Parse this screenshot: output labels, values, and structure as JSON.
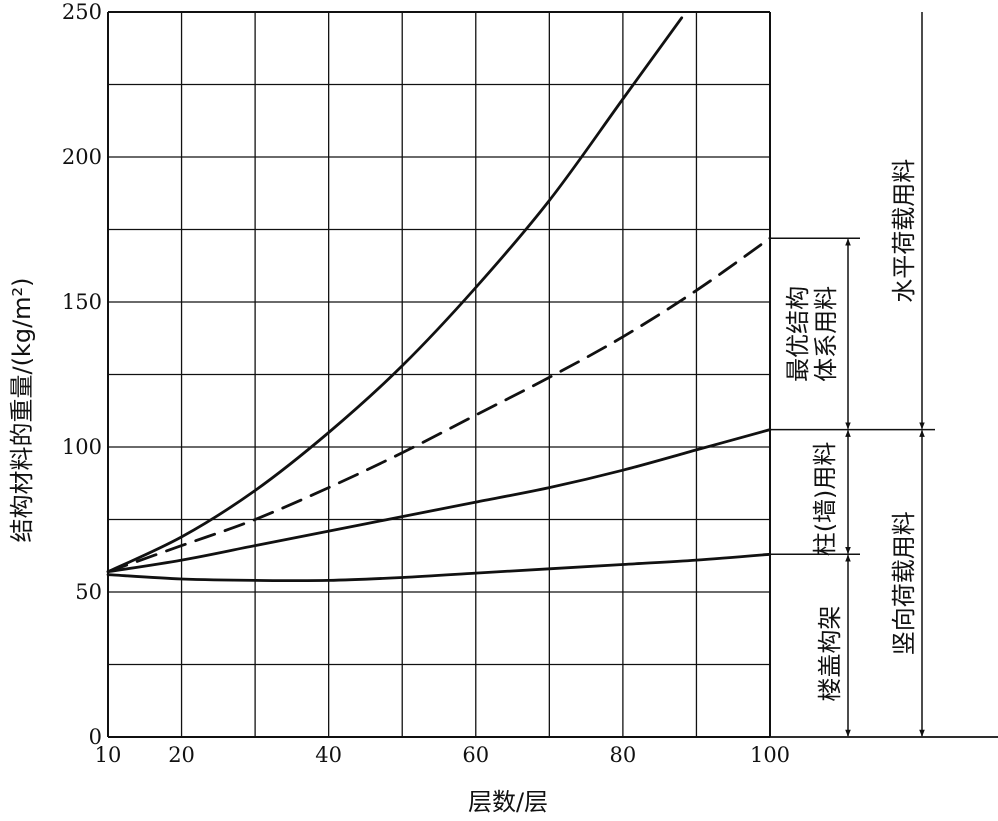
{
  "chart_data": {
    "type": "line",
    "xlabel": "层数/层",
    "ylabel": "结构材料的重量/(kg/m²)",
    "x_ticks": [
      10,
      20,
      40,
      60,
      80,
      100
    ],
    "y_ticks": [
      0,
      50,
      100,
      150,
      200,
      250
    ],
    "xlim": [
      10,
      100
    ],
    "ylim": [
      0,
      250
    ],
    "grid": true,
    "series": [
      {
        "style": "solid",
        "x": [
          10,
          20,
          30,
          40,
          50,
          60,
          70,
          80,
          88
        ],
        "y": [
          57,
          69,
          85,
          105,
          128,
          155,
          185,
          220,
          248
        ]
      },
      {
        "style": "dashed",
        "x": [
          10,
          20,
          30,
          40,
          50,
          60,
          70,
          80,
          90,
          100
        ],
        "y": [
          57,
          66,
          75,
          86,
          98,
          111,
          124,
          138,
          154,
          172
        ]
      },
      {
        "style": "solid",
        "x": [
          10,
          20,
          30,
          40,
          50,
          60,
          70,
          80,
          90,
          100
        ],
        "y": [
          57,
          61,
          66,
          71,
          76,
          81,
          86,
          92,
          99,
          106
        ]
      },
      {
        "style": "solid",
        "x": [
          10,
          20,
          30,
          40,
          50,
          60,
          70,
          80,
          90,
          100
        ],
        "y": [
          56,
          54.5,
          54,
          54,
          55,
          56.5,
          58,
          59.5,
          61,
          63
        ]
      }
    ],
    "annotations": {
      "floor": "楼盖构架",
      "column": "柱(墙)用料",
      "optimal": [
        "最优结构",
        "体系用料"
      ],
      "vertical": "竖向荷载用料",
      "horizontal": "水平荷载用料"
    },
    "annotation_levels": {
      "floor_top": 63,
      "column_top": 106,
      "optimal_top": 172,
      "horizontal_top": 250
    }
  }
}
